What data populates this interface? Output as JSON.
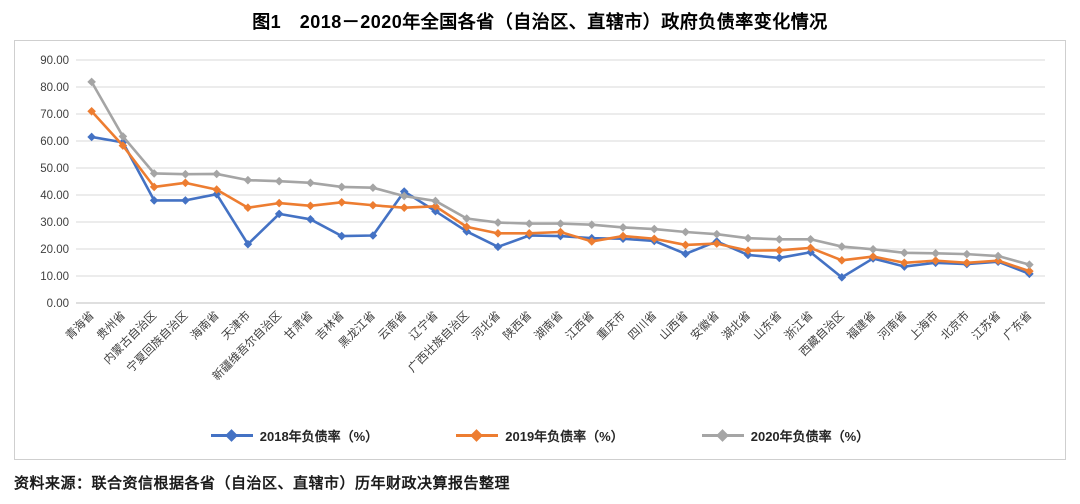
{
  "figure": {
    "title": "图1　2018－2020年全国各省（自治区、直辖市）政府负债率变化情况",
    "source_note": "资料来源：联合资信根据各省（自治区、直辖市）历年财政决算报告整理"
  },
  "chart_data": {
    "type": "line",
    "title": "图1　2018－2020年全国各省（自治区、直辖市）政府负债率变化情况",
    "xlabel": "",
    "ylabel": "",
    "ylim": [
      0,
      90
    ],
    "yticks": [
      0,
      10,
      20,
      30,
      40,
      50,
      60,
      70,
      80,
      90
    ],
    "ytick_labels": [
      "0.00",
      "10.00",
      "20.00",
      "30.00",
      "40.00",
      "50.00",
      "60.00",
      "70.00",
      "80.00",
      "90.00"
    ],
    "grid": "horizontal",
    "legend_position": "bottom-center",
    "marker": "diamond",
    "categories": [
      "青海省",
      "贵州省",
      "内蒙古自治区",
      "宁夏回族自治区",
      "海南省",
      "天津市",
      "新疆维吾尔自治区",
      "甘肃省",
      "吉林省",
      "黑龙江省",
      "云南省",
      "辽宁省",
      "广西壮族自治区",
      "河北省",
      "陕西省",
      "湖南省",
      "江西省",
      "重庆市",
      "四川省",
      "山西省",
      "安徽省",
      "湖北省",
      "山东省",
      "浙江省",
      "西藏自治区",
      "福建省",
      "河南省",
      "上海市",
      "北京市",
      "江苏省",
      "广东省"
    ],
    "series": [
      {
        "name": "2018年负债率（%）",
        "color": "#4472C4",
        "values": [
          61.5,
          59.5,
          38.0,
          38.0,
          40.3,
          21.8,
          33.0,
          31.0,
          24.8,
          25.0,
          41.3,
          34.0,
          26.5,
          20.8,
          25.0,
          24.8,
          24.0,
          23.8,
          23.0,
          18.2,
          22.8,
          17.8,
          16.7,
          18.8,
          9.5,
          16.5,
          13.5,
          14.9,
          14.4,
          15.3,
          10.8
        ]
      },
      {
        "name": "2019年负债率（%）",
        "color": "#ED7D31",
        "values": [
          71.0,
          58.3,
          43.0,
          44.5,
          42.0,
          35.3,
          37.0,
          36.0,
          37.3,
          36.2,
          35.3,
          35.8,
          28.2,
          25.8,
          25.8,
          26.3,
          22.8,
          24.8,
          23.8,
          21.5,
          22.0,
          19.4,
          19.5,
          20.4,
          15.8,
          17.2,
          14.9,
          15.7,
          14.9,
          15.7,
          11.8
        ]
      },
      {
        "name": "2020年负债率（%）",
        "color": "#A5A5A5",
        "values": [
          81.9,
          61.7,
          48.0,
          47.7,
          47.8,
          45.5,
          45.1,
          44.5,
          43.0,
          42.7,
          39.6,
          37.8,
          31.3,
          29.8,
          29.4,
          29.4,
          29.0,
          28.0,
          27.4,
          26.3,
          25.5,
          24.0,
          23.6,
          23.6,
          20.9,
          19.9,
          18.6,
          18.4,
          18.1,
          17.4,
          14.2
        ]
      }
    ]
  }
}
